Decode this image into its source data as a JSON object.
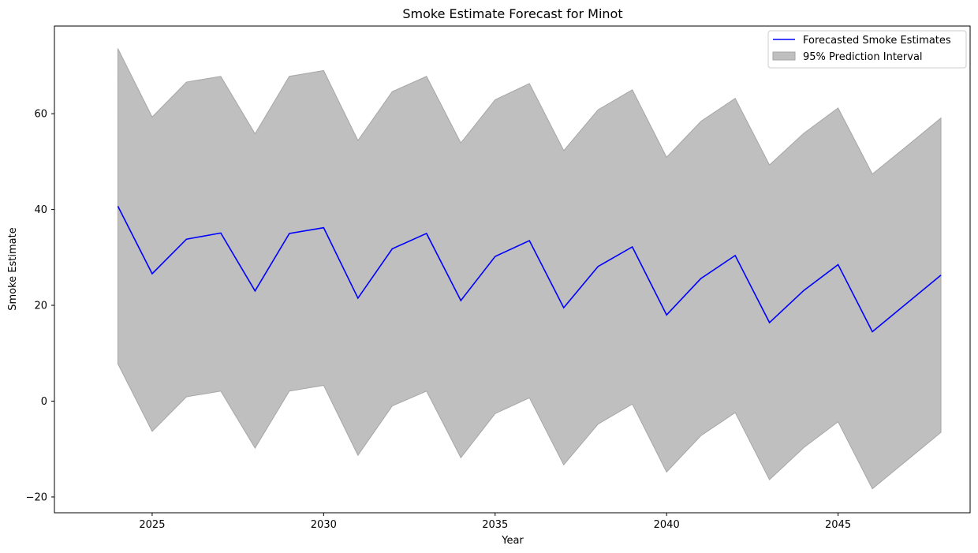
{
  "chart_data": {
    "type": "line",
    "title": "Smoke Estimate Forecast for Minot",
    "xlabel": "Year",
    "ylabel": "Smoke Estimate",
    "xlim": [
      2022.15,
      2048.85
    ],
    "ylim": [
      -23.3,
      78.3
    ],
    "xticks": [
      2025,
      2030,
      2035,
      2040,
      2045
    ],
    "yticks": [
      -20,
      0,
      20,
      40,
      60
    ],
    "x": [
      2024,
      2025,
      2026,
      2027,
      2028,
      2029,
      2030,
      2031,
      2032,
      2033,
      2034,
      2035,
      2036,
      2037,
      2038,
      2039,
      2040,
      2041,
      2042,
      2043,
      2044,
      2045,
      2046,
      2047,
      2048
    ],
    "series": [
      {
        "name": "Forecasted Smoke Estimates",
        "type": "line",
        "color": "#0000ff",
        "values": [
          40.7,
          26.6,
          33.8,
          35.1,
          23.0,
          35.0,
          36.2,
          21.5,
          31.8,
          35.0,
          21.0,
          30.2,
          33.5,
          19.5,
          28.1,
          32.2,
          18.0,
          25.6,
          30.4,
          16.4,
          23.1,
          28.5,
          14.5,
          20.4,
          26.3
        ]
      },
      {
        "name": "95% Prediction Interval",
        "type": "band",
        "color": "#bfbfbf",
        "edge_color": "#a6a6a6",
        "upper": [
          73.6,
          59.3,
          66.6,
          67.8,
          55.8,
          67.8,
          69.0,
          54.4,
          64.6,
          67.8,
          53.9,
          62.9,
          66.3,
          52.3,
          60.8,
          65.0,
          50.9,
          58.4,
          63.2,
          49.3,
          55.9,
          61.2,
          47.4,
          53.2,
          59.1
        ],
        "lower": [
          7.8,
          -6.3,
          0.9,
          2.1,
          -9.8,
          2.1,
          3.3,
          -11.3,
          -1.0,
          2.1,
          -11.8,
          -2.6,
          0.7,
          -13.3,
          -4.8,
          -0.6,
          -14.8,
          -7.2,
          -2.4,
          -16.4,
          -9.7,
          -4.3,
          -18.3,
          -12.4,
          -6.5
        ]
      }
    ],
    "legend": {
      "placement": "top-right",
      "entries": [
        "Forecasted Smoke Estimates",
        "95% Prediction Interval"
      ]
    },
    "grid": false
  }
}
